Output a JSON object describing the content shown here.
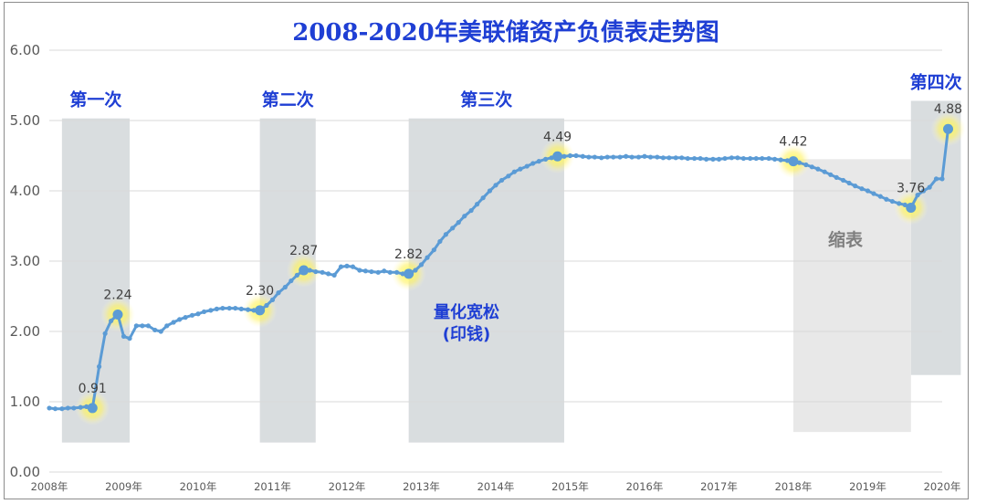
{
  "chart_data": {
    "type": "line",
    "title": "2008-2020年美联储资产负债表走势图",
    "xlabel": "",
    "ylabel": "",
    "ylim": [
      0,
      6
    ],
    "yticks": [
      "0.00",
      "1.00",
      "2.00",
      "3.00",
      "4.00",
      "5.00",
      "6.00"
    ],
    "yticks_values": [
      0,
      1,
      2,
      3,
      4,
      5,
      6
    ],
    "xlim": [
      2008.0,
      2020.0
    ],
    "xticks": [
      "2008年",
      "2009年",
      "2010年",
      "2011年",
      "2012年",
      "2013年",
      "2014年",
      "2015年",
      "2016年",
      "2017年",
      "2018年",
      "2019年",
      "2020年"
    ],
    "xticks_values": [
      2008,
      2009,
      2010,
      2011,
      2012,
      2013,
      2014,
      2015,
      2016,
      2017,
      2018,
      2019,
      2020
    ],
    "grid": true,
    "line_color": "#5b9bd5",
    "series": [
      {
        "points": [
          [
            2008.0,
            0.91
          ],
          [
            2008.08,
            0.9
          ],
          [
            2008.17,
            0.9
          ],
          [
            2008.25,
            0.91
          ],
          [
            2008.33,
            0.91
          ],
          [
            2008.42,
            0.92
          ],
          [
            2008.5,
            0.93
          ],
          [
            2008.58,
            0.91
          ],
          [
            2008.67,
            1.5
          ],
          [
            2008.75,
            1.97
          ],
          [
            2008.83,
            2.15
          ],
          [
            2008.92,
            2.24
          ],
          [
            2009.0,
            1.93
          ],
          [
            2009.08,
            1.9
          ],
          [
            2009.17,
            2.08
          ],
          [
            2009.25,
            2.08
          ],
          [
            2009.33,
            2.08
          ],
          [
            2009.42,
            2.02
          ],
          [
            2009.5,
            2.0
          ],
          [
            2009.58,
            2.08
          ],
          [
            2009.67,
            2.13
          ],
          [
            2009.75,
            2.17
          ],
          [
            2009.83,
            2.2
          ],
          [
            2009.92,
            2.23
          ],
          [
            2010.0,
            2.25
          ],
          [
            2010.08,
            2.28
          ],
          [
            2010.17,
            2.3
          ],
          [
            2010.25,
            2.32
          ],
          [
            2010.33,
            2.33
          ],
          [
            2010.42,
            2.33
          ],
          [
            2010.5,
            2.33
          ],
          [
            2010.58,
            2.32
          ],
          [
            2010.67,
            2.31
          ],
          [
            2010.75,
            2.3
          ],
          [
            2010.83,
            2.3
          ],
          [
            2010.92,
            2.37
          ],
          [
            2011.0,
            2.45
          ],
          [
            2011.08,
            2.55
          ],
          [
            2011.17,
            2.63
          ],
          [
            2011.25,
            2.72
          ],
          [
            2011.33,
            2.8
          ],
          [
            2011.42,
            2.87
          ],
          [
            2011.5,
            2.87
          ],
          [
            2011.58,
            2.85
          ],
          [
            2011.67,
            2.84
          ],
          [
            2011.75,
            2.82
          ],
          [
            2011.83,
            2.8
          ],
          [
            2011.92,
            2.92
          ],
          [
            2012.0,
            2.93
          ],
          [
            2012.08,
            2.92
          ],
          [
            2012.17,
            2.87
          ],
          [
            2012.25,
            2.86
          ],
          [
            2012.33,
            2.85
          ],
          [
            2012.42,
            2.84
          ],
          [
            2012.5,
            2.86
          ],
          [
            2012.58,
            2.84
          ],
          [
            2012.67,
            2.84
          ],
          [
            2012.75,
            2.82
          ],
          [
            2012.83,
            2.82
          ],
          [
            2012.92,
            2.87
          ],
          [
            2013.0,
            2.95
          ],
          [
            2013.08,
            3.05
          ],
          [
            2013.17,
            3.16
          ],
          [
            2013.25,
            3.28
          ],
          [
            2013.33,
            3.38
          ],
          [
            2013.42,
            3.47
          ],
          [
            2013.5,
            3.55
          ],
          [
            2013.58,
            3.64
          ],
          [
            2013.67,
            3.72
          ],
          [
            2013.75,
            3.81
          ],
          [
            2013.83,
            3.9
          ],
          [
            2013.92,
            4.0
          ],
          [
            2014.0,
            4.08
          ],
          [
            2014.08,
            4.15
          ],
          [
            2014.17,
            4.21
          ],
          [
            2014.25,
            4.27
          ],
          [
            2014.33,
            4.31
          ],
          [
            2014.42,
            4.35
          ],
          [
            2014.5,
            4.39
          ],
          [
            2014.58,
            4.42
          ],
          [
            2014.67,
            4.45
          ],
          [
            2014.75,
            4.47
          ],
          [
            2014.83,
            4.49
          ],
          [
            2014.92,
            4.49
          ],
          [
            2015.0,
            4.5
          ],
          [
            2015.08,
            4.5
          ],
          [
            2015.17,
            4.49
          ],
          [
            2015.25,
            4.48
          ],
          [
            2015.33,
            4.48
          ],
          [
            2015.42,
            4.47
          ],
          [
            2015.5,
            4.48
          ],
          [
            2015.58,
            4.48
          ],
          [
            2015.67,
            4.48
          ],
          [
            2015.75,
            4.49
          ],
          [
            2015.83,
            4.48
          ],
          [
            2015.92,
            4.48
          ],
          [
            2016.0,
            4.49
          ],
          [
            2016.08,
            4.48
          ],
          [
            2016.17,
            4.48
          ],
          [
            2016.25,
            4.47
          ],
          [
            2016.33,
            4.47
          ],
          [
            2016.42,
            4.47
          ],
          [
            2016.5,
            4.47
          ],
          [
            2016.58,
            4.46
          ],
          [
            2016.67,
            4.46
          ],
          [
            2016.75,
            4.46
          ],
          [
            2016.83,
            4.45
          ],
          [
            2016.92,
            4.45
          ],
          [
            2017.0,
            4.45
          ],
          [
            2017.08,
            4.46
          ],
          [
            2017.17,
            4.47
          ],
          [
            2017.25,
            4.47
          ],
          [
            2017.33,
            4.46
          ],
          [
            2017.42,
            4.46
          ],
          [
            2017.5,
            4.46
          ],
          [
            2017.58,
            4.46
          ],
          [
            2017.67,
            4.46
          ],
          [
            2017.75,
            4.45
          ],
          [
            2017.83,
            4.44
          ],
          [
            2017.92,
            4.43
          ],
          [
            2018.0,
            4.42
          ],
          [
            2018.08,
            4.4
          ],
          [
            2018.17,
            4.37
          ],
          [
            2018.25,
            4.34
          ],
          [
            2018.33,
            4.31
          ],
          [
            2018.42,
            4.27
          ],
          [
            2018.5,
            4.23
          ],
          [
            2018.58,
            4.19
          ],
          [
            2018.67,
            4.15
          ],
          [
            2018.75,
            4.11
          ],
          [
            2018.83,
            4.07
          ],
          [
            2018.92,
            4.03
          ],
          [
            2019.0,
            4.0
          ],
          [
            2019.08,
            3.96
          ],
          [
            2019.17,
            3.92
          ],
          [
            2019.25,
            3.88
          ],
          [
            2019.33,
            3.85
          ],
          [
            2019.42,
            3.82
          ],
          [
            2019.5,
            3.8
          ],
          [
            2019.58,
            3.76
          ],
          [
            2019.67,
            3.94
          ],
          [
            2019.75,
            4.0
          ],
          [
            2019.83,
            4.05
          ],
          [
            2019.92,
            4.17
          ],
          [
            2020.0,
            4.17
          ],
          [
            2020.08,
            4.88
          ]
        ]
      }
    ],
    "highlights": [
      {
        "x": 2008.58,
        "y": 0.91,
        "label": "0.91"
      },
      {
        "x": 2008.92,
        "y": 2.24,
        "label": "2.24"
      },
      {
        "x": 2010.83,
        "y": 2.3,
        "label": "2.30"
      },
      {
        "x": 2011.42,
        "y": 2.87,
        "label": "2.87"
      },
      {
        "x": 2012.83,
        "y": 2.82,
        "label": "2.82"
      },
      {
        "x": 2014.83,
        "y": 4.49,
        "label": "4.49"
      },
      {
        "x": 2018.0,
        "y": 4.42,
        "label": "4.42"
      },
      {
        "x": 2019.58,
        "y": 3.76,
        "label": "3.76"
      },
      {
        "x": 2020.08,
        "y": 4.88,
        "label": "4.88"
      }
    ],
    "regions": [
      {
        "label": "第一次",
        "x_start": 2008.17,
        "x_end": 2009.08,
        "y_top": 5.03,
        "y_bottom": 0.42,
        "color": "#d9dddf"
      },
      {
        "label": "第二次",
        "x_start": 2010.83,
        "x_end": 2011.58,
        "y_top": 5.03,
        "y_bottom": 0.42,
        "color": "#d9dddf"
      },
      {
        "label": "第三次",
        "x_start": 2012.83,
        "x_end": 2014.92,
        "y_top": 5.03,
        "y_bottom": 0.42,
        "color": "#d9dddf"
      },
      {
        "label": "第四次",
        "x_start": 2019.58,
        "x_end": 2020.25,
        "y_top": 5.28,
        "y_bottom": 1.38,
        "color": "#d9dddf"
      }
    ],
    "qe_note": {
      "line1": "量化宽松",
      "line2": "(印钱)"
    },
    "shrink": {
      "label": "缩表",
      "x_start": 2018.0,
      "x_end": 2019.58,
      "y_top": 4.45,
      "y_bottom": 0.57,
      "color": "#e8e8e8"
    }
  }
}
